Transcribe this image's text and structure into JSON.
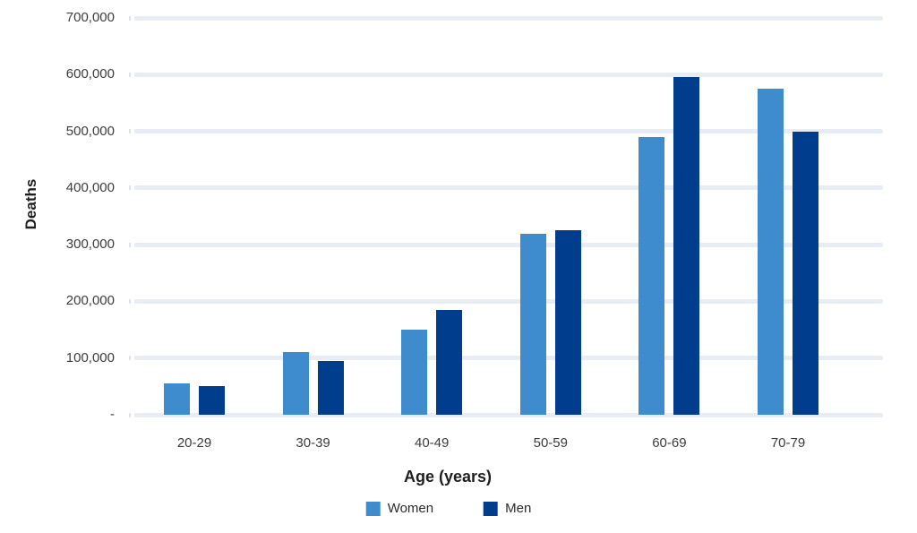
{
  "chart_data": {
    "type": "bar",
    "title": "",
    "xlabel": "Age (years)",
    "ylabel": "Deaths",
    "categories": [
      "20-29",
      "30-39",
      "40-49",
      "50-59",
      "60-69",
      "70-79"
    ],
    "series": [
      {
        "name": "Women",
        "color": "#3e8bce",
        "values": [
          55000,
          110000,
          150000,
          320000,
          490000,
          575000
        ]
      },
      {
        "name": "Men",
        "color": "#003e8d",
        "values": [
          50000,
          95000,
          185000,
          325000,
          595000,
          500000
        ]
      }
    ],
    "ylim": [
      0,
      700000
    ],
    "ytick_interval": 100000,
    "ytick_labels": [
      "-",
      "100,000",
      "200,000",
      "300,000",
      "400,000",
      "500,000",
      "600,000",
      "700,000"
    ],
    "grid": "horizontal",
    "legend_position": "bottom"
  },
  "colors": {
    "background": "#ffffff",
    "gridline": "#e8edf3",
    "axis_tick": "#dce3eb",
    "tick_text": "#3c3c3c",
    "axis_title_text": "#1f1f1f"
  }
}
